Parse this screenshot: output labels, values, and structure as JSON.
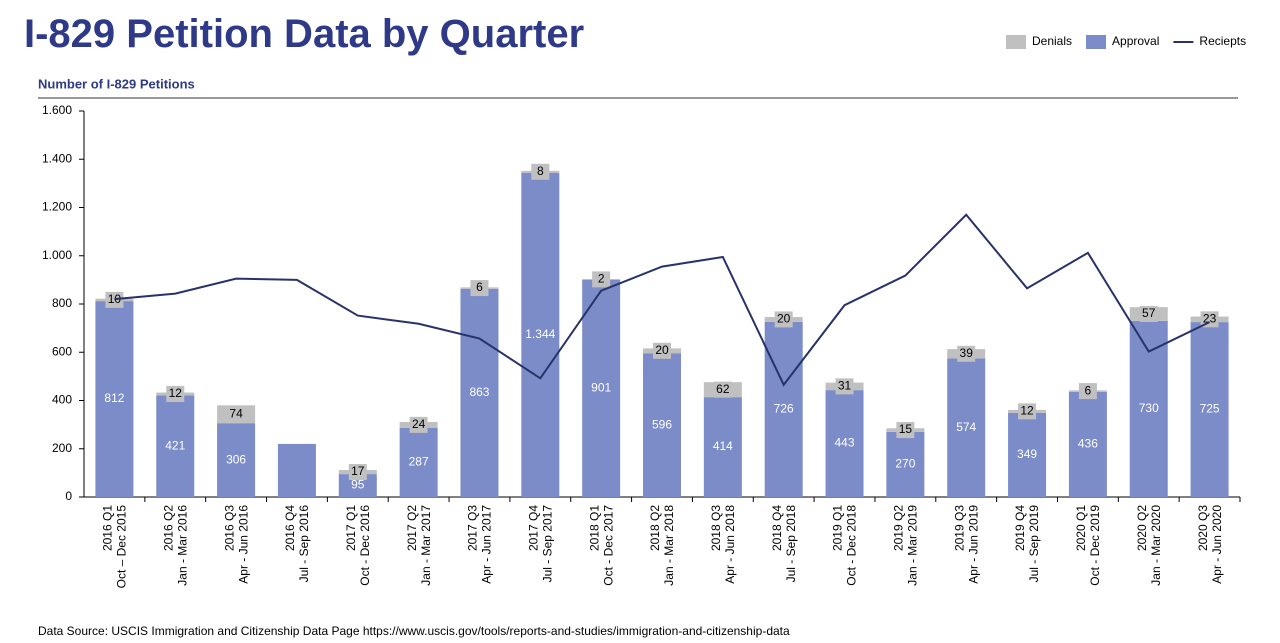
{
  "chart_data": {
    "type": "bar",
    "title": "I-829 Petition Data by Quarter",
    "subtitle": "Number of I-829 Petitions",
    "source": "Data Source: USCIS Immigration and Citizenship Data Page https://www.uscis.gov/tools/reports-and-studies/immigration-and-citizenship-data",
    "categories": [
      "2016 Q1",
      "2016 Q2",
      "2016 Q3",
      "2016 Q4",
      "2017 Q1",
      "2017 Q2",
      "2017 Q3",
      "2017 Q4",
      "2018 Q1",
      "2018 Q2",
      "2018 Q3",
      "2018 Q4",
      "2019 Q1",
      "2019 Q2",
      "2019 Q3",
      "2019 Q4",
      "2020 Q1",
      "2020 Q2",
      "2020 Q3"
    ],
    "category_periods": [
      "Oct – Dec 2015",
      "Jan - Mar 2016",
      "Apr - Jun 2016",
      "Jul - Sep 2016",
      "Oct - Dec 2016",
      "Jan - Mar 2017",
      "Apr - Jun 2017",
      "Jul - Sep 2017",
      "Oct - Dec 2017",
      "Jan - Mar 2018",
      "Apr - Jun 2018",
      "Jul - Sep 2018",
      "Oct - Dec 2018",
      "Jan - Mar 2019",
      "Apr - Jun 2019",
      "Jul - Sep 2019",
      "Oct - Dec 2019",
      "Jan - Mar 2020",
      "Apr - Jun 2020"
    ],
    "series": [
      {
        "name": "Approval",
        "color": "#7b8cc8",
        "kind": "bar",
        "values": [
          812,
          421,
          306,
          220,
          95,
          287,
          863,
          1344,
          901,
          596,
          414,
          726,
          443,
          270,
          574,
          349,
          436,
          730,
          725
        ],
        "value_labels": [
          "812",
          "421",
          "306",
          null,
          "95",
          "287",
          "863",
          "1.344",
          "901",
          "596",
          "414",
          "726",
          "443",
          "270",
          "574",
          "349",
          "436",
          "730",
          "725"
        ]
      },
      {
        "name": "Denials",
        "color": "#c0c0c0",
        "kind": "bar",
        "values": [
          10,
          12,
          74,
          null,
          17,
          24,
          6,
          8,
          2,
          20,
          62,
          20,
          31,
          15,
          39,
          12,
          6,
          57,
          23
        ]
      },
      {
        "name": "Reciepts",
        "color": "#283269",
        "kind": "line",
        "values": [
          820,
          843,
          905,
          900,
          752,
          718,
          657,
          492,
          855,
          955,
          995,
          465,
          795,
          918,
          1170,
          865,
          1012,
          603,
          725
        ]
      }
    ],
    "legend_order": [
      1,
      0,
      2
    ],
    "ylim": [
      0,
      1600
    ],
    "yticks": [
      0,
      200,
      400,
      600,
      800,
      {
        "value": 1000,
        "label": "1.000"
      },
      {
        "value": 1200,
        "label": "1.200"
      },
      {
        "value": 1400,
        "label": "1.400"
      },
      {
        "value": 1600,
        "label": "1.600"
      }
    ],
    "grid": false
  }
}
